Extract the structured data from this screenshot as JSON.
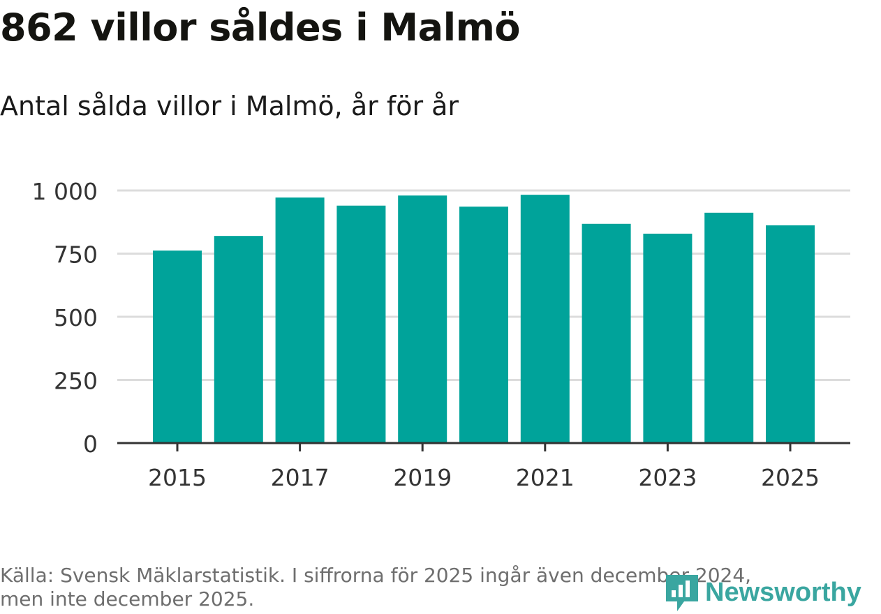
{
  "chart_data": {
    "type": "bar",
    "title": "862 villor såldes i Malmö",
    "subtitle": "Antal sålda villor i Malmö, år för år",
    "categories": [
      "2015",
      "2016",
      "2017",
      "2018",
      "2019",
      "2020",
      "2021",
      "2022",
      "2023",
      "2024",
      "2025"
    ],
    "values": [
      762,
      820,
      972,
      940,
      980,
      936,
      983,
      868,
      829,
      912,
      862
    ],
    "xticks": [
      "2015",
      "2017",
      "2019",
      "2021",
      "2023",
      "2025"
    ],
    "yticks": [
      0,
      250,
      500,
      750,
      1000
    ],
    "ytick_labels": [
      "0",
      "250",
      "500",
      "750",
      "1 000"
    ],
    "ylim": [
      0,
      1000
    ],
    "xlabel": "",
    "ylabel": "",
    "grid": true,
    "bar_color": "#00a39a"
  },
  "footer": {
    "source_line1": "Källa: Svensk Mäklarstatistik. I siffrorna för 2025 ingår även december 2024,",
    "source_line2": "men inte december 2025."
  },
  "brand": {
    "name": "Newsworthy",
    "icon": "newsworthy-logo-icon",
    "color": "#3aa6a0"
  }
}
